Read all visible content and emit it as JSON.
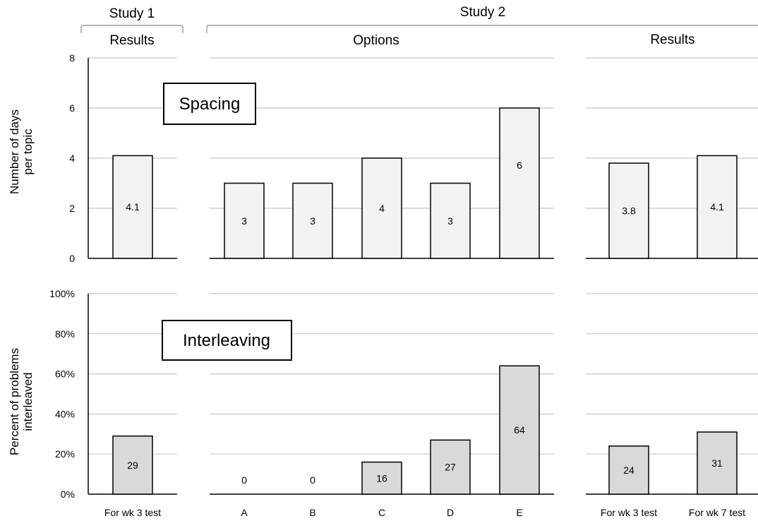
{
  "headers": {
    "study1": "Study 1",
    "study2": "Study 2",
    "study1_results": "Results",
    "study2_options": "Options",
    "study2_results": "Results"
  },
  "chart_data": [
    {
      "type": "bar",
      "annotation": "Spacing",
      "ylabel": [
        "Number of days",
        "per topic"
      ],
      "ylim": [
        0,
        8
      ],
      "yticks": [
        0,
        2,
        4,
        6,
        8
      ],
      "ytick_labels": [
        "0",
        "2",
        "4",
        "6",
        "8"
      ],
      "color": "#f2f2f2",
      "groups": [
        {
          "name": "Study 1 Results",
          "categories": [
            "For wk 3 test"
          ],
          "values": [
            4.1
          ],
          "labels": [
            "4.1"
          ]
        },
        {
          "name": "Study 2 Options",
          "categories": [
            "A",
            "B",
            "C",
            "D",
            "E"
          ],
          "values": [
            3,
            3,
            4,
            3,
            6
          ],
          "labels": [
            "3",
            "3",
            "4",
            "3",
            "6"
          ]
        },
        {
          "name": "Study 2 Results",
          "categories": [
            "For wk 3 test",
            "For wk 7 test"
          ],
          "values": [
            3.8,
            4.1
          ],
          "labels": [
            "3.8",
            "4.1"
          ]
        }
      ],
      "grid": true
    },
    {
      "type": "bar",
      "annotation": "Interleaving",
      "ylabel": [
        "Percent of problems",
        "interleaved"
      ],
      "ylim": [
        0,
        100
      ],
      "yticks": [
        0,
        20,
        40,
        60,
        80,
        100
      ],
      "ytick_labels": [
        "0%",
        "20%",
        "40%",
        "60%",
        "80%",
        "100%"
      ],
      "color": "#d9d9d9",
      "groups": [
        {
          "name": "Study 1 Results",
          "categories": [
            "For wk 3 test"
          ],
          "values": [
            29
          ],
          "labels": [
            "29"
          ]
        },
        {
          "name": "Study 2 Options",
          "categories": [
            "A",
            "B",
            "C",
            "D",
            "E"
          ],
          "values": [
            0,
            0,
            16,
            27,
            64
          ],
          "labels": [
            "0",
            "0",
            "16",
            "27",
            "64"
          ]
        },
        {
          "name": "Study 2 Results",
          "categories": [
            "For wk 3 test",
            "For wk 7 test"
          ],
          "values": [
            24,
            31
          ],
          "labels": [
            "24",
            "31"
          ]
        }
      ],
      "grid": true
    }
  ]
}
